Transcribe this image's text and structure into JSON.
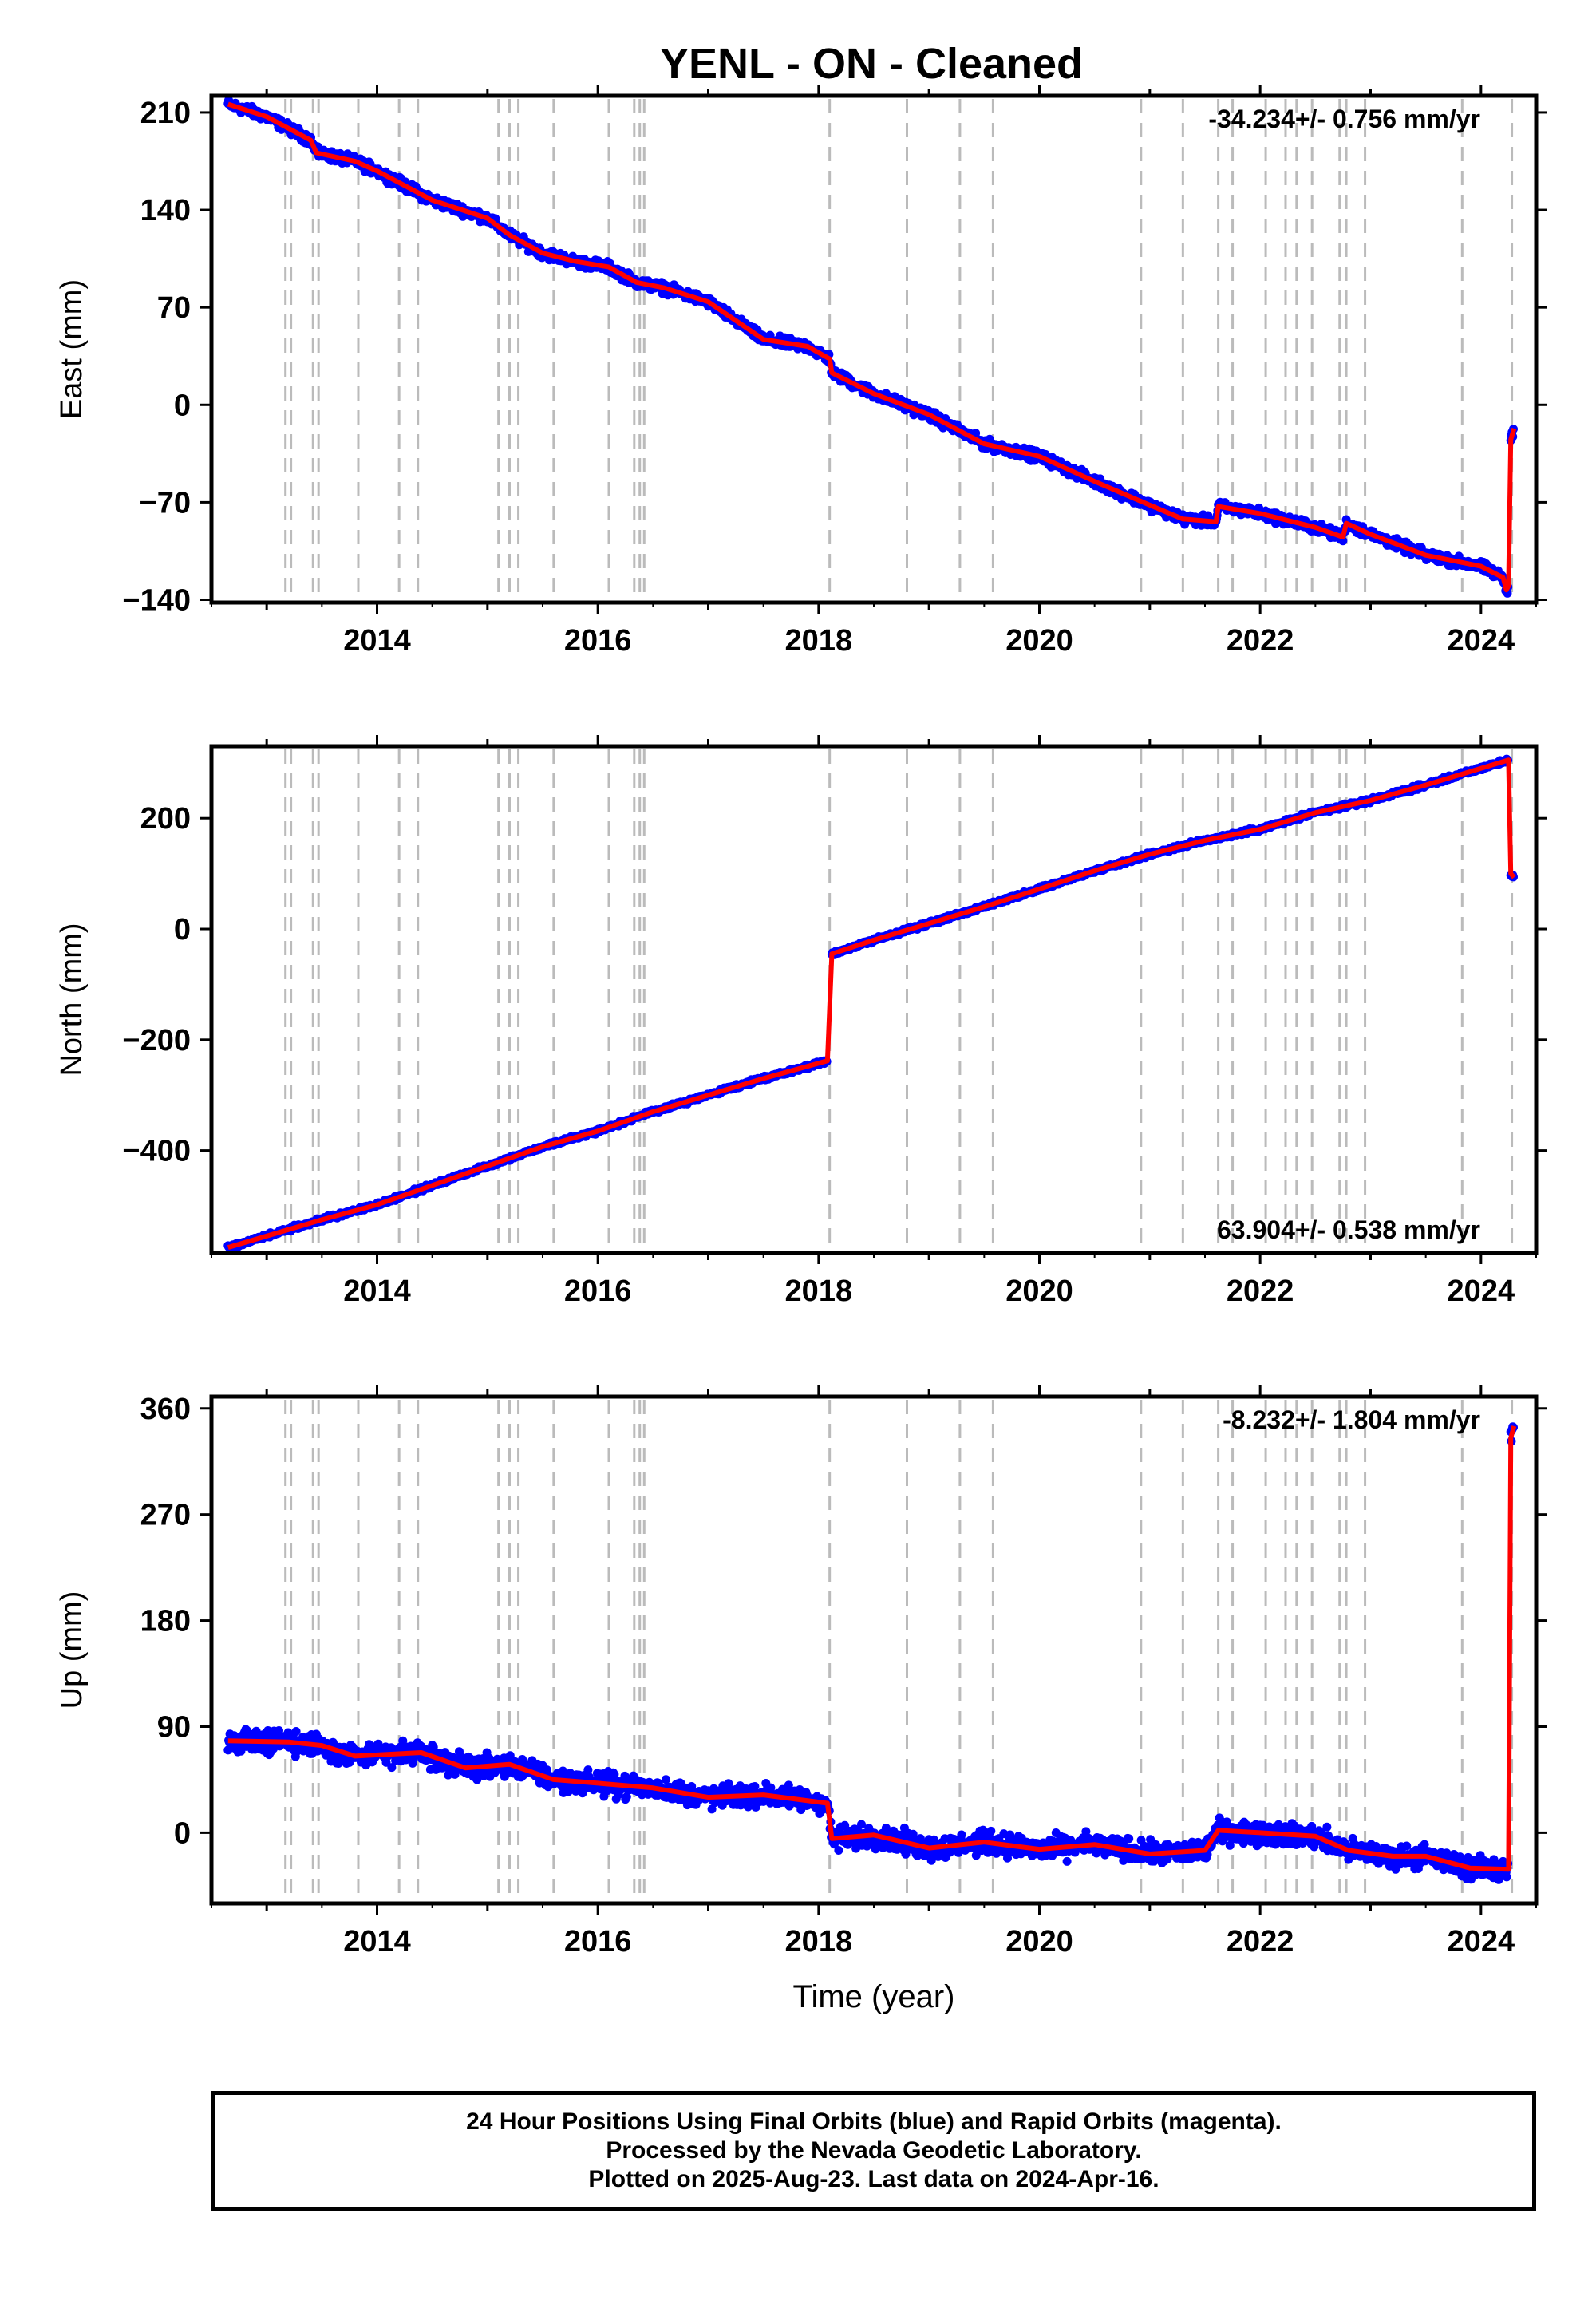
{
  "title": "YENL  - ON - Cleaned",
  "xlabel": "Time (year)",
  "x_tick_labels": [
    "2014",
    "2016",
    "2018",
    "2020",
    "2022",
    "2024"
  ],
  "colors": {
    "data": "#0000ff",
    "model": "#ff0000",
    "break_lines": "#bbbbbb",
    "frame": "#000000"
  },
  "break_years": [
    2013.17,
    2013.22,
    2013.42,
    2013.47,
    2013.83,
    2014.2,
    2014.37,
    2015.1,
    2015.2,
    2015.28,
    2015.6,
    2016.1,
    2016.33,
    2016.38,
    2016.42,
    2018.1,
    2018.8,
    2019.28,
    2019.58,
    2020.92,
    2021.3,
    2021.62,
    2021.75,
    2022.05,
    2022.23,
    2022.33,
    2022.47,
    2022.72,
    2022.78,
    2022.95,
    2023.83,
    2024.28
  ],
  "chart_data": [
    {
      "type": "scatter",
      "ylabel": "East (mm)",
      "rate_label": "-34.234+/- 0.756 mm/yr",
      "y_tick_labels": [
        "210",
        "140",
        "70",
        "0",
        "−70",
        "−140"
      ],
      "xlim": [
        2012.5,
        2024.5
      ],
      "ylim": [
        -142,
        222
      ],
      "series": [
        {
          "values": [
            [
              2012.65,
              216
            ],
            [
              2013.0,
              207
            ],
            [
              2013.4,
              190
            ],
            [
              2013.45,
              181
            ],
            [
              2013.8,
              175
            ],
            [
              2014.0,
              168
            ],
            [
              2014.5,
              147
            ],
            [
              2015.0,
              134
            ],
            [
              2015.2,
              122
            ],
            [
              2015.5,
              109
            ],
            [
              2015.8,
              103
            ],
            [
              2016.1,
              99
            ],
            [
              2016.35,
              88
            ],
            [
              2016.6,
              84
            ],
            [
              2017.0,
              74
            ],
            [
              2017.5,
              47
            ],
            [
              2017.9,
              42
            ],
            [
              2018.1,
              33
            ],
            [
              2018.12,
              23
            ],
            [
              2018.5,
              8
            ],
            [
              2019.0,
              -7
            ],
            [
              2019.5,
              -28
            ],
            [
              2020.0,
              -37
            ],
            [
              2020.5,
              -55
            ],
            [
              2021.0,
              -72
            ],
            [
              2021.3,
              -82
            ],
            [
              2021.6,
              -84
            ],
            [
              2021.62,
              -73
            ],
            [
              2022.0,
              -78
            ],
            [
              2022.5,
              -88
            ],
            [
              2022.75,
              -95
            ],
            [
              2022.78,
              -85
            ],
            [
              2023.0,
              -93
            ],
            [
              2023.5,
              -108
            ],
            [
              2024.0,
              -116
            ],
            [
              2024.2,
              -124
            ],
            [
              2024.23,
              -133
            ],
            [
              2024.25,
              -130
            ],
            [
              2024.27,
              -25
            ],
            [
              2024.3,
              -17
            ]
          ]
        }
      ]
    },
    {
      "type": "scatter",
      "ylabel": "North (mm)",
      "rate_label": "63.904+/- 0.538 mm/yr",
      "y_tick_labels": [
        "200",
        "0",
        "−200",
        "−400"
      ],
      "xlim": [
        2012.5,
        2024.5
      ],
      "ylim": [
        -585,
        330
      ],
      "series": [
        {
          "values": [
            [
              2012.65,
              -575
            ],
            [
              2013.5,
              -525
            ],
            [
              2014.0,
              -498
            ],
            [
              2015.0,
              -428
            ],
            [
              2015.5,
              -393
            ],
            [
              2016.0,
              -365
            ],
            [
              2016.5,
              -330
            ],
            [
              2017.0,
              -300
            ],
            [
              2017.5,
              -270
            ],
            [
              2018.08,
              -238
            ],
            [
              2018.12,
              -45
            ],
            [
              2018.5,
              -20
            ],
            [
              2019.0,
              10
            ],
            [
              2019.5,
              40
            ],
            [
              2020.0,
              72
            ],
            [
              2020.5,
              105
            ],
            [
              2021.0,
              135
            ],
            [
              2021.5,
              160
            ],
            [
              2022.0,
              180
            ],
            [
              2022.5,
              210
            ],
            [
              2023.0,
              232
            ],
            [
              2023.5,
              260
            ],
            [
              2024.0,
              290
            ],
            [
              2024.25,
              305
            ],
            [
              2024.27,
              100
            ],
            [
              2024.3,
              93
            ]
          ]
        }
      ]
    },
    {
      "type": "scatter",
      "ylabel": "Up (mm)",
      "rate_label": "-8.232+/- 1.804 mm/yr",
      "y_tick_labels": [
        "360",
        "270",
        "180",
        "90",
        "0"
      ],
      "xlim": [
        2012.5,
        2024.5
      ],
      "ylim": [
        -60,
        370
      ],
      "series": [
        {
          "values": [
            [
              2012.65,
              78
            ],
            [
              2013.2,
              77
            ],
            [
              2013.5,
              74
            ],
            [
              2013.8,
              65
            ],
            [
              2014.4,
              68
            ],
            [
              2014.8,
              55
            ],
            [
              2015.2,
              58
            ],
            [
              2015.6,
              45
            ],
            [
              2016.0,
              42
            ],
            [
              2016.5,
              38
            ],
            [
              2017.0,
              30
            ],
            [
              2017.5,
              32
            ],
            [
              2018.08,
              25
            ],
            [
              2018.12,
              -5
            ],
            [
              2018.5,
              -2
            ],
            [
              2019.0,
              -13
            ],
            [
              2019.5,
              -8
            ],
            [
              2020.0,
              -14
            ],
            [
              2020.5,
              -10
            ],
            [
              2021.0,
              -18
            ],
            [
              2021.5,
              -15
            ],
            [
              2021.62,
              2
            ],
            [
              2022.0,
              0
            ],
            [
              2022.5,
              -3
            ],
            [
              2022.8,
              -15
            ],
            [
              2023.2,
              -20
            ],
            [
              2023.5,
              -20
            ],
            [
              2023.9,
              -30
            ],
            [
              2024.25,
              -31
            ],
            [
              2024.27,
              335
            ],
            [
              2024.3,
              345
            ]
          ]
        }
      ]
    }
  ],
  "footer": {
    "line1": "24 Hour Positions Using Final Orbits (blue) and Rapid Orbits (magenta).",
    "line2": "Processed by the Nevada Geodetic Laboratory.",
    "line3": "Plotted on 2025-Aug-23. Last data on 2024-Apr-16."
  }
}
